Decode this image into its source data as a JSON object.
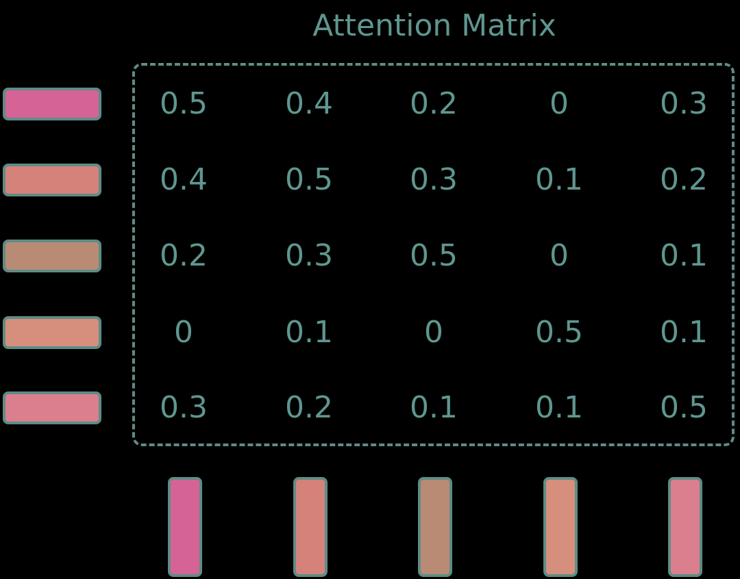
{
  "title": "Attention Matrix",
  "matrix": [
    [
      "0.5",
      "0.4",
      "0.2",
      "0",
      "0.3"
    ],
    [
      "0.4",
      "0.5",
      "0.3",
      "0.1",
      "0.2"
    ],
    [
      "0.2",
      "0.3",
      "0.5",
      "0",
      "0.1"
    ],
    [
      "0",
      "0.1",
      "0",
      "0.5",
      "0.1"
    ],
    [
      "0.3",
      "0.2",
      "0.1",
      "0.1",
      "0.5"
    ]
  ],
  "token_colors": [
    "#d66395",
    "#d5827a",
    "#b98a74",
    "#d68f7c",
    "#db7f8e"
  ],
  "border_color": "#5e8c86",
  "text_color": "#5f9690"
}
